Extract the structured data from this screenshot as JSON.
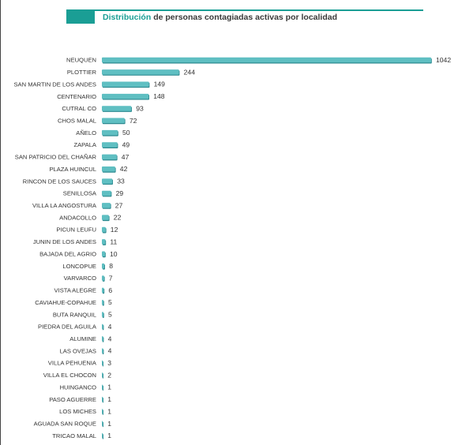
{
  "title": {
    "highlight": "Distribución",
    "rest": "de personas contagiadas activas por localidad"
  },
  "colors": {
    "accent": "#1a9e95",
    "bar": "#5fbfc2",
    "bar_shadow": "#2d8a90"
  },
  "chart_data": {
    "type": "bar",
    "orientation": "horizontal",
    "title": "Distribución de personas contagiadas activas por localidad",
    "xlabel": "",
    "ylabel": "",
    "grid": false,
    "categories": [
      "NEUQUEN",
      "PLOTTIER",
      "SAN MARTIN DE LOS ANDES",
      "CENTENARIO",
      "CUTRAL CO",
      "CHOS MALAL",
      "AÑELO",
      "ZAPALA",
      "SAN PATRICIO DEL CHAÑAR",
      "PLAZA HUINCUL",
      "RINCON DE LOS SAUCES",
      "SENILLOSA",
      "VILLA LA ANGOSTURA",
      "ANDACOLLO",
      "PICUN LEUFU",
      "JUNIN DE LOS ANDES",
      "BAJADA DEL AGRIO",
      "LONCOPUE",
      "VARVARCO",
      "VISTA ALEGRE",
      "CAVIAHUE-COPAHUE",
      "BUTA RANQUIL",
      "PIEDRA DEL AGUILA",
      "ALUMINE",
      "LAS OVEJAS",
      "VILLA PEHUENIA",
      "VILLA EL CHOCON",
      "HUINGANCO",
      "PASO AGUERRE",
      "LOS MICHES",
      "AGUADA SAN ROQUE",
      "TRICAO MALAL"
    ],
    "values": [
      1042,
      244,
      149,
      148,
      93,
      72,
      50,
      49,
      47,
      42,
      33,
      29,
      27,
      22,
      12,
      11,
      10,
      8,
      7,
      6,
      5,
      5,
      4,
      4,
      4,
      3,
      2,
      1,
      1,
      1,
      1,
      1
    ],
    "xlim": [
      0,
      1042
    ]
  }
}
